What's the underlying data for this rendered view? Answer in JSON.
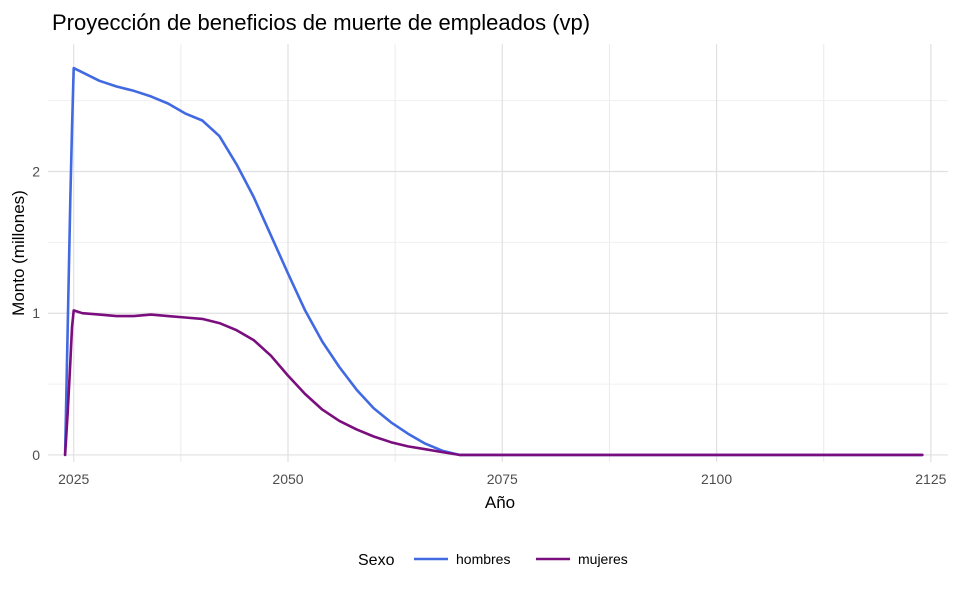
{
  "chart_data": {
    "type": "line",
    "title": "Proyección de beneficios de muerte de empleados (vp)",
    "xlabel": "Año",
    "ylabel": "Monto (millones)",
    "xlim": [
      2022,
      2127
    ],
    "ylim": [
      -0.05,
      2.9
    ],
    "xticks": [
      2025,
      2050,
      2075,
      2100,
      2125
    ],
    "yticks": [
      0,
      1,
      2
    ],
    "grid": true,
    "legend": {
      "title": "Sexo",
      "position": "bottom"
    },
    "series": [
      {
        "name": "hombres",
        "color": "#4169E1",
        "x": [
          2024,
          2024.3,
          2024.6,
          2024.8,
          2025,
          2026,
          2028,
          2030,
          2032,
          2034,
          2036,
          2038,
          2040,
          2042,
          2044,
          2046,
          2048,
          2050,
          2052,
          2054,
          2056,
          2058,
          2060,
          2062,
          2064,
          2066,
          2068,
          2070,
          2072,
          2080,
          2090,
          2100,
          2110,
          2124
        ],
        "values": [
          0,
          0.9,
          1.8,
          2.3,
          2.73,
          2.7,
          2.64,
          2.6,
          2.57,
          2.53,
          2.48,
          2.41,
          2.36,
          2.25,
          2.05,
          1.82,
          1.55,
          1.28,
          1.02,
          0.8,
          0.62,
          0.46,
          0.33,
          0.23,
          0.15,
          0.08,
          0.03,
          0.0,
          0.0,
          0.0,
          0.0,
          0.0,
          0.0,
          0.0
        ]
      },
      {
        "name": "mujeres",
        "color": "#7B0E7E",
        "x": [
          2024,
          2024.3,
          2024.6,
          2024.8,
          2025,
          2026,
          2028,
          2030,
          2032,
          2034,
          2036,
          2038,
          2040,
          2042,
          2044,
          2046,
          2048,
          2050,
          2052,
          2054,
          2056,
          2058,
          2060,
          2062,
          2064,
          2066,
          2068,
          2070,
          2072,
          2080,
          2090,
          2100,
          2110,
          2124
        ],
        "values": [
          0,
          0.3,
          0.65,
          0.9,
          1.02,
          1.0,
          0.99,
          0.98,
          0.98,
          0.99,
          0.98,
          0.97,
          0.96,
          0.93,
          0.88,
          0.81,
          0.7,
          0.56,
          0.43,
          0.32,
          0.24,
          0.18,
          0.13,
          0.09,
          0.06,
          0.04,
          0.02,
          0.0,
          0.0,
          0.0,
          0.0,
          0.0,
          0.0,
          0.0
        ]
      }
    ]
  }
}
